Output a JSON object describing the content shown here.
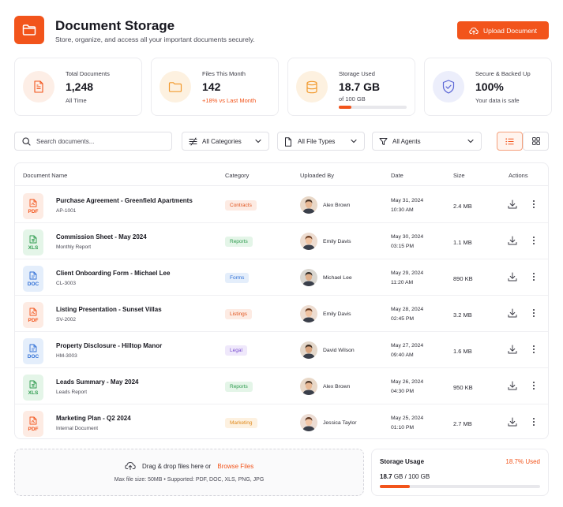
{
  "header": {
    "title": "Document Storage",
    "subtitle": "Store, organize, and access all your important documents securely.",
    "upload_label": "Upload Document"
  },
  "stats": [
    {
      "label": "Total Documents",
      "value": "1,248",
      "sub": "All Time",
      "icon": "document-icon"
    },
    {
      "label": "Files This Month",
      "value": "142",
      "sub": "+18% vs Last Month",
      "icon": "folder-icon"
    },
    {
      "label": "Storage Used",
      "value": "18.7 GB",
      "sub": "of 100 GB",
      "fill": 0.187,
      "icon": "database-icon"
    },
    {
      "label": "Secure & Backed Up",
      "value": "100%",
      "sub": "Your data is safe",
      "icon": "shield-check-icon"
    }
  ],
  "filters": {
    "search_placeholder": "Search documents...",
    "category": "All Categories",
    "file_type": "All File Types",
    "agent": "All Agents"
  },
  "table": {
    "headers": {
      "name": "Document Name",
      "category": "Category",
      "uploaded_by": "Uploaded By",
      "date": "Date",
      "size": "Size",
      "actions": "Actions"
    },
    "rows": [
      {
        "type": "PDF",
        "name": "Purchase Agreement - Greenfield Apartments",
        "sub": "AP-1001",
        "category": "Contracts",
        "user": "Alex Brown",
        "date": "May 31, 2024",
        "time": "10:30 AM",
        "size": "2.4 MB"
      },
      {
        "type": "XLS",
        "name": "Commission Sheet - May 2024",
        "sub": "Monthly Report",
        "category": "Reports",
        "user": "Emily Davis",
        "date": "May 30, 2024",
        "time": "03:15 PM",
        "size": "1.1 MB"
      },
      {
        "type": "DOC",
        "name": "Client Onboarding Form - Michael Lee",
        "sub": "CL-3003",
        "category": "Forms",
        "user": "Michael Lee",
        "date": "May 29, 2024",
        "time": "11:20 AM",
        "size": "890 KB"
      },
      {
        "type": "PDF",
        "name": "Listing Presentation - Sunset Villas",
        "sub": "SV-2002",
        "category": "Listings",
        "user": "Emily Davis",
        "date": "May 28, 2024",
        "time": "02:45 PM",
        "size": "3.2 MB"
      },
      {
        "type": "DOC",
        "name": "Property Disclosure - Hilltop Manor",
        "sub": "HM-3003",
        "category": "Legal",
        "user": "David Wilson",
        "date": "May 27, 2024",
        "time": "09:40 AM",
        "size": "1.6 MB"
      },
      {
        "type": "XLS",
        "name": "Leads Summary - May 2024",
        "sub": "Leads Report",
        "category": "Reports",
        "user": "Alex Brown",
        "date": "May 26, 2024",
        "time": "04:30 PM",
        "size": "950 KB"
      },
      {
        "type": "PDF",
        "name": "Marketing Plan - Q2 2024",
        "sub": "Internal Document",
        "category": "Marketing",
        "user": "Jessica Taylor",
        "date": "May 25, 2024",
        "time": "01:10 PM",
        "size": "2.7 MB"
      }
    ]
  },
  "dropzone": {
    "text": "Drag & drop files here or",
    "browse": "Browse Files",
    "hint": "Max file size: 50MB  •  Supported: PDF, DOC, XLS, PNG, JPG"
  },
  "usage": {
    "title": "Storage Usage",
    "percent": "18.7% Used",
    "used": "18.7",
    "total": "GB / 100 GB",
    "fill": 0.187
  },
  "colors": {
    "accent": "#f2541b",
    "pdf": "#f2541b",
    "xls": "#2e9b4e",
    "doc": "#2f6fd6"
  }
}
